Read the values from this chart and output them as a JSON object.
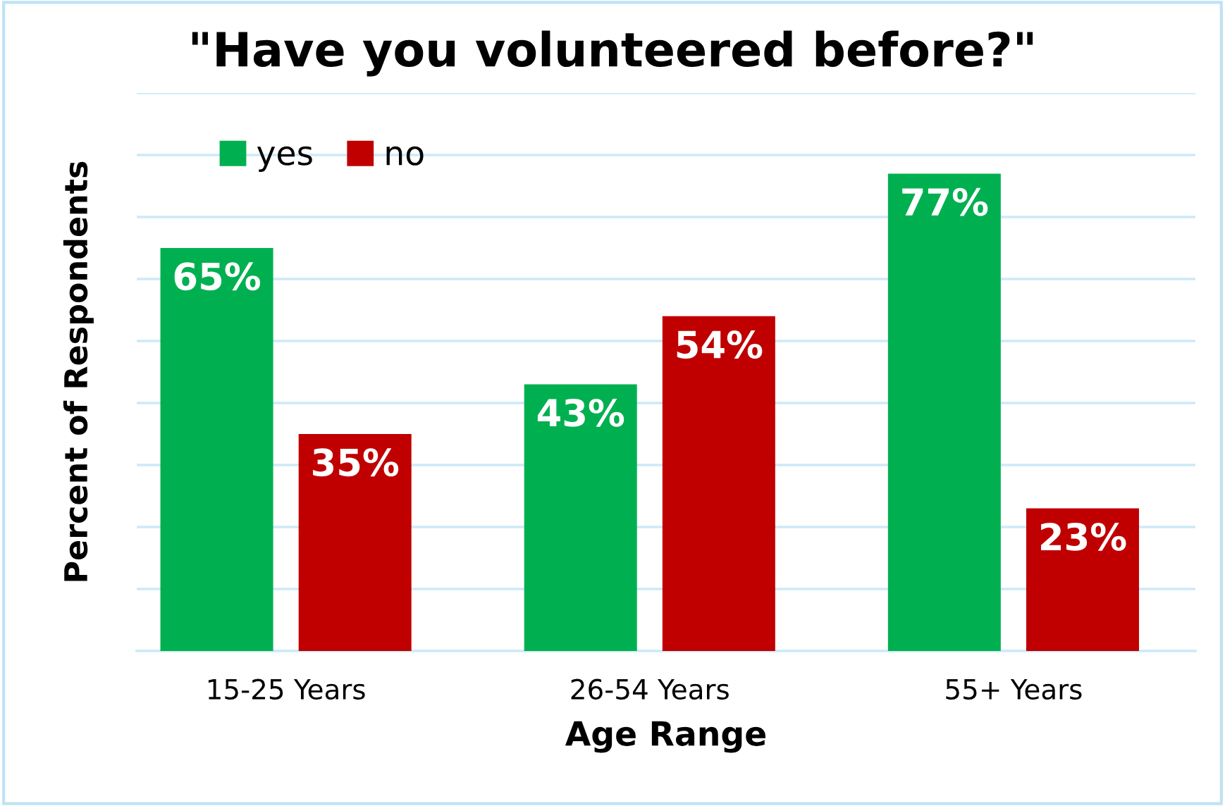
{
  "chart_data": {
    "type": "bar",
    "title": "\"Have you volunteered before?\"",
    "xlabel": "Age Range",
    "ylabel": "Percent of Respondents",
    "categories": [
      "15-25 Years",
      "26-54 Years",
      "55+ Years"
    ],
    "series": [
      {
        "name": "yes",
        "color": "#00b050",
        "values": [
          65,
          43,
          77
        ],
        "value_labels": [
          "65%",
          "43%",
          "77%"
        ]
      },
      {
        "name": "no",
        "color": "#c00000",
        "values": [
          35,
          54,
          23
        ],
        "value_labels": [
          "35%",
          "54%",
          "23%"
        ]
      }
    ],
    "ylim": [
      0,
      90
    ],
    "yticks": [
      {
        "value": 0,
        "label": null
      },
      {
        "value": 10,
        "label": null
      },
      {
        "value": 20,
        "label": null
      },
      {
        "value": 30,
        "label": null
      },
      {
        "value": 40,
        "label": null
      },
      {
        "value": 50,
        "label": null
      },
      {
        "value": 60,
        "label": null
      },
      {
        "value": 70,
        "label": null
      },
      {
        "value": 80,
        "label": null
      },
      {
        "value": 90,
        "label": null
      }
    ],
    "grid": "y",
    "legend": "top left",
    "tick_labels": "x"
  }
}
